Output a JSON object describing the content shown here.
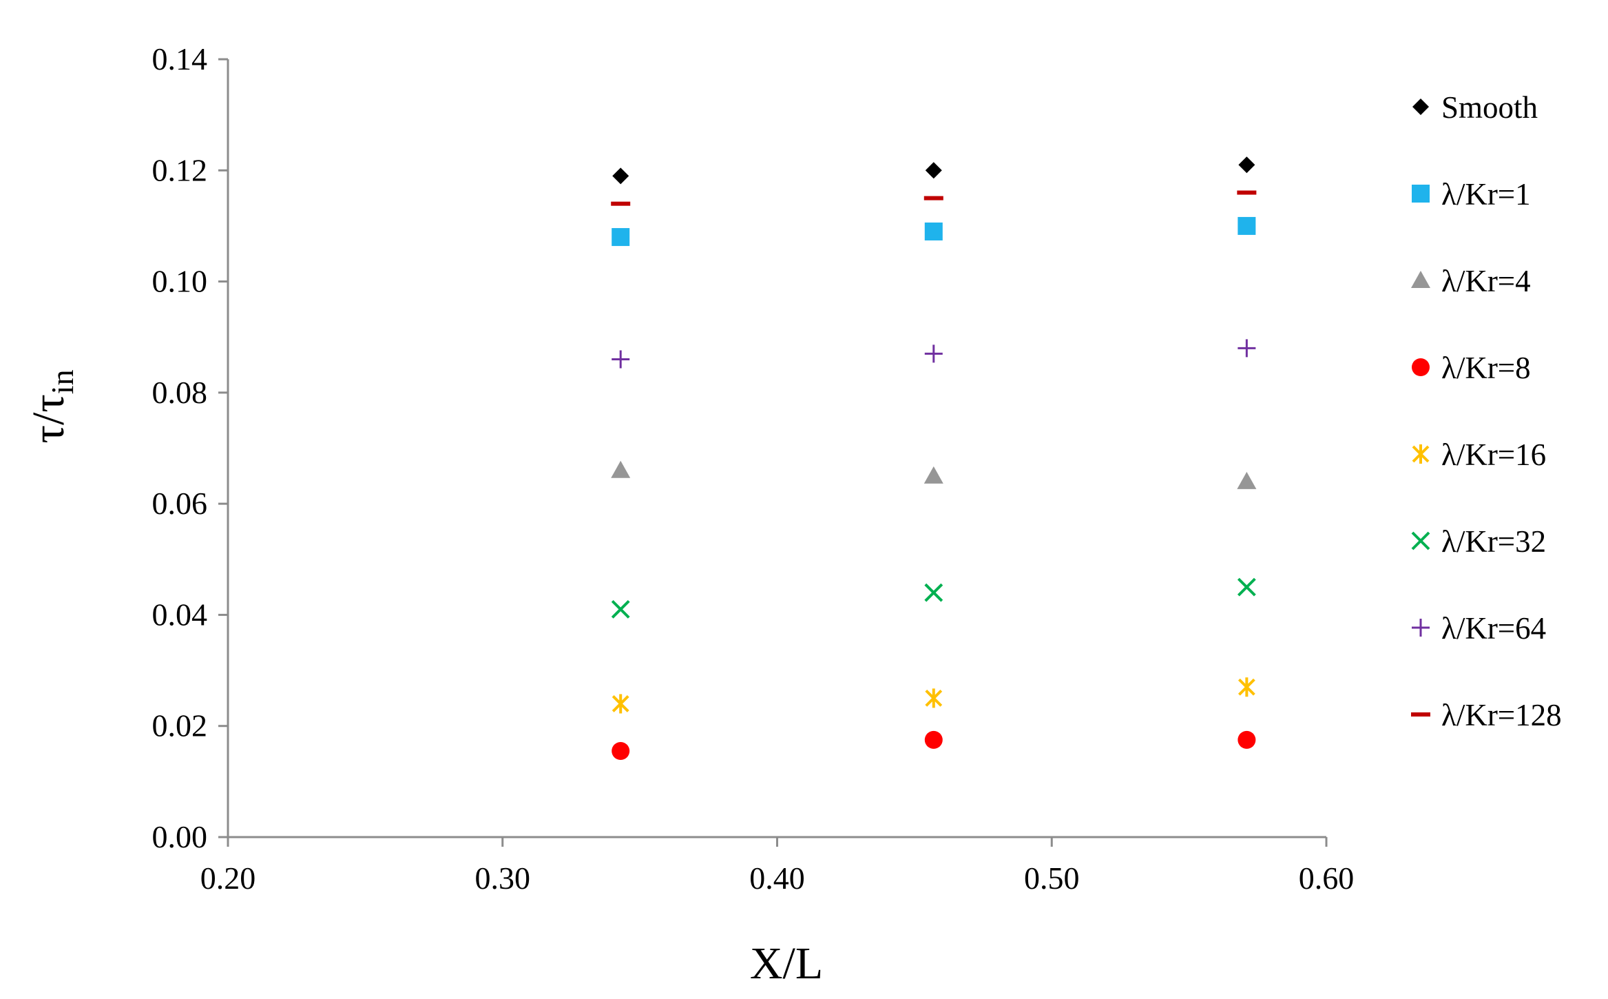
{
  "chart_data": {
    "type": "scatter",
    "xlabel": "X/L",
    "ylabel": {
      "main": "τ/τ",
      "sub": "in"
    },
    "xlim": [
      0.2,
      0.6
    ],
    "ylim": [
      0.0,
      0.14
    ],
    "xticks": [
      "0.20",
      "0.30",
      "0.40",
      "0.50",
      "0.60"
    ],
    "yticks": [
      "0.00",
      "0.02",
      "0.04",
      "0.06",
      "0.08",
      "0.10",
      "0.12",
      "0.14"
    ],
    "grid": false,
    "legend_position": "right",
    "series": [
      {
        "name": "Smooth",
        "marker": "diamond",
        "color": "#000000",
        "x": [
          0.343,
          0.457,
          0.571
        ],
        "y": [
          0.119,
          0.12,
          0.121
        ]
      },
      {
        "name": "λ/Kr=1",
        "marker": "square",
        "color": "#1FB3EC",
        "x": [
          0.343,
          0.457,
          0.571
        ],
        "y": [
          0.108,
          0.109,
          0.11
        ]
      },
      {
        "name": "λ/Kr=4",
        "marker": "triangle",
        "color": "#969696",
        "x": [
          0.343,
          0.457,
          0.571
        ],
        "y": [
          0.066,
          0.065,
          0.064
        ]
      },
      {
        "name": "λ/Kr=8",
        "marker": "circle",
        "color": "#FF0000",
        "x": [
          0.343,
          0.457,
          0.571
        ],
        "y": [
          0.0155,
          0.0175,
          0.0175
        ]
      },
      {
        "name": "λ/Kr=16",
        "marker": "star",
        "color": "#FFC000",
        "x": [
          0.343,
          0.457,
          0.571
        ],
        "y": [
          0.024,
          0.025,
          0.027
        ]
      },
      {
        "name": "λ/Kr=32",
        "marker": "x",
        "color": "#00B050",
        "x": [
          0.343,
          0.457,
          0.571
        ],
        "y": [
          0.041,
          0.044,
          0.045
        ]
      },
      {
        "name": "λ/Kr=64",
        "marker": "plus",
        "color": "#7030A0",
        "x": [
          0.343,
          0.457,
          0.571
        ],
        "y": [
          0.086,
          0.087,
          0.088
        ]
      },
      {
        "name": "λ/Kr=128",
        "marker": "dash",
        "color": "#C00000",
        "x": [
          0.343,
          0.457,
          0.571
        ],
        "y": [
          0.114,
          0.115,
          0.116
        ]
      }
    ]
  }
}
